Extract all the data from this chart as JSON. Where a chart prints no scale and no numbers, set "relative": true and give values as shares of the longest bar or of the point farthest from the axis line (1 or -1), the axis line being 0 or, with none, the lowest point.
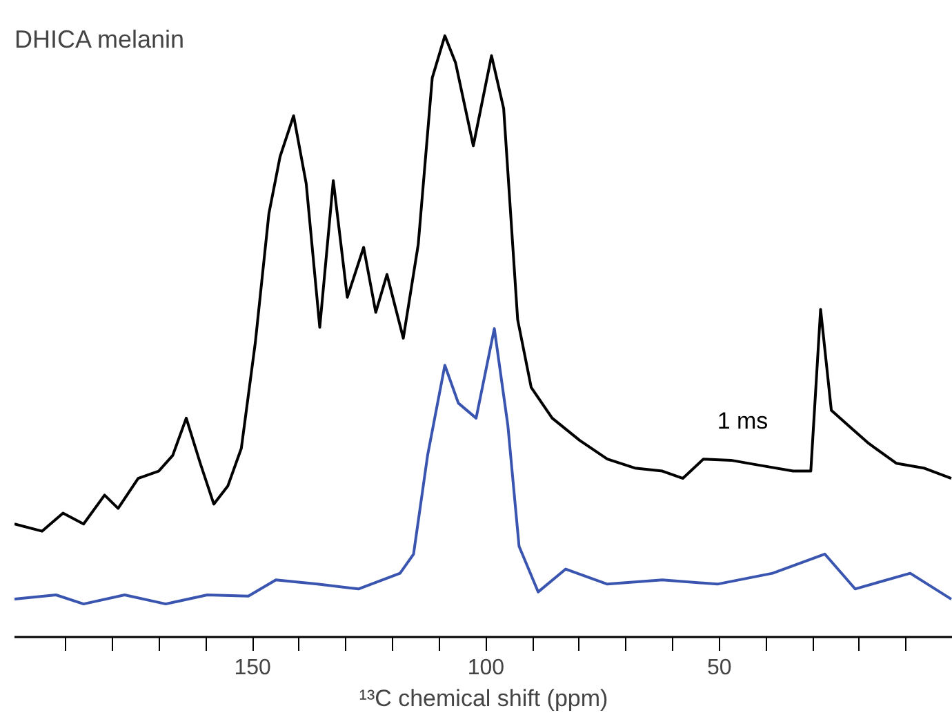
{
  "chart_data": {
    "type": "line",
    "title": "DHICA  melanin",
    "xlabel": "¹³C chemical shift (ppm)",
    "relative": true,
    "grid": false,
    "legend": false,
    "marker": "none",
    "line_style": "solid",
    "xlim": [
      201,
      0
    ],
    "xticks": [
      {
        "value": 190,
        "label": null
      },
      {
        "value": 180,
        "label": null
      },
      {
        "value": 170,
        "label": null
      },
      {
        "value": 160,
        "label": null
      },
      150,
      {
        "value": 140,
        "label": null
      },
      {
        "value": 130,
        "label": null
      },
      {
        "value": 120,
        "label": null
      },
      {
        "value": 110,
        "label": null
      },
      100,
      {
        "value": 90,
        "label": null
      },
      {
        "value": 80,
        "label": null
      },
      {
        "value": 70,
        "label": null
      },
      {
        "value": 60,
        "label": null
      },
      50,
      {
        "value": 40,
        "label": null
      },
      {
        "value": 30,
        "label": null
      },
      {
        "value": 20,
        "label": null
      },
      {
        "value": 10,
        "label": null
      }
    ],
    "series": [
      {
        "name": "1 ms",
        "color": "#000000",
        "x": [
          201,
          195.1,
          190.6,
          186.2,
          181.7,
          178.8,
          174.5,
          170.1,
          167.1,
          164.2,
          161.2,
          158.3,
          155.3,
          152.4,
          149.4,
          146.5,
          144.1,
          141.2,
          138.5,
          135.6,
          132.7,
          129.7,
          126.2,
          123.6,
          121.2,
          117.7,
          114.5,
          111.5,
          108.8,
          106.5,
          102.7,
          98.8,
          96.2,
          93.2,
          90.3,
          85.8,
          79.9,
          74.0,
          68.1,
          62.2,
          57.8,
          53.4,
          47.5,
          41.6,
          34.2,
          30.4,
          28.3,
          26.0,
          22.4,
          18.0,
          12.1,
          6.2,
          0.3
        ],
        "values": [
          0.188,
          0.176,
          0.206,
          0.188,
          0.236,
          0.214,
          0.264,
          0.276,
          0.302,
          0.364,
          0.289,
          0.221,
          0.251,
          0.314,
          0.49,
          0.704,
          0.799,
          0.867,
          0.754,
          0.515,
          0.759,
          0.565,
          0.648,
          0.54,
          0.603,
          0.497,
          0.653,
          0.93,
          1,
          0.955,
          0.817,
          0.967,
          0.879,
          0.528,
          0.415,
          0.364,
          0.327,
          0.296,
          0.281,
          0.276,
          0.264,
          0.296,
          0.294,
          0.286,
          0.276,
          0.276,
          0.545,
          0.377,
          0.352,
          0.322,
          0.289,
          0.281,
          0.264
        ]
      },
      {
        "color": "#3a55b0",
        "x": [
          201,
          192.1,
          186.2,
          177.4,
          168.6,
          159.7,
          150.9,
          145.0,
          136.1,
          127.3,
          118.4,
          115.5,
          112.5,
          108.8,
          105.9,
          102.1,
          98.2,
          95.3,
          92.9,
          88.8,
          82.9,
          74.0,
          62.2,
          50.4,
          38.6,
          27.4,
          20.9,
          9.1,
          0.3
        ],
        "values": [
          0.063,
          0.07,
          0.055,
          0.07,
          0.055,
          0.07,
          0.068,
          0.095,
          0.088,
          0.08,
          0.106,
          0.138,
          0.302,
          0.452,
          0.389,
          0.364,
          0.513,
          0.352,
          0.151,
          0.075,
          0.113,
          0.088,
          0.095,
          0.088,
          0.106,
          0.138,
          0.08,
          0.106,
          0.063
        ]
      }
    ]
  }
}
